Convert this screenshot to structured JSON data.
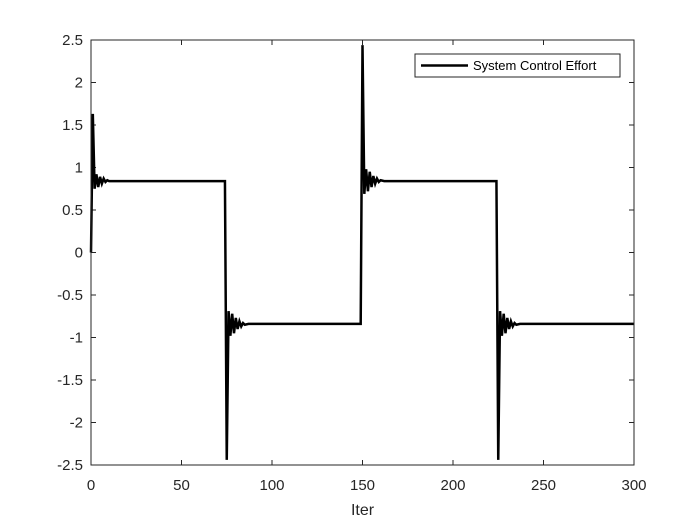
{
  "chart_data": {
    "type": "line",
    "title": "",
    "xlabel": "Iter",
    "ylabel": "",
    "xlim": [
      0,
      300
    ],
    "ylim": [
      -2.5,
      2.5
    ],
    "xticks": [
      0,
      50,
      100,
      150,
      200,
      250,
      300
    ],
    "xtick_labels": [
      "0",
      "50",
      "100",
      "150",
      "200",
      "250",
      "300"
    ],
    "yticks": [
      -2.5,
      -2,
      -1.5,
      -1,
      -0.5,
      0,
      0.5,
      1,
      1.5,
      2,
      2.5
    ],
    "ytick_labels": [
      "-2.5",
      "-2",
      "-1.5",
      "-1",
      "-0.5",
      "0",
      "0.5",
      "1",
      "1.5",
      "2",
      "2.5"
    ],
    "grid": false,
    "legend": {
      "placement": "top-right",
      "entries": [
        "System Control Effort"
      ]
    },
    "series": [
      {
        "name": "System Control Effort",
        "color": "#000000",
        "x": [
          0,
          1,
          2,
          3,
          4,
          5,
          6,
          7,
          8,
          9,
          10,
          12,
          74,
          75,
          76,
          77,
          78,
          79,
          80,
          81,
          82,
          83,
          84,
          85,
          87,
          149,
          150,
          151,
          152,
          153,
          154,
          155,
          156,
          157,
          158,
          159,
          160,
          162,
          224,
          225,
          226,
          227,
          228,
          229,
          230,
          231,
          232,
          233,
          234,
          235,
          237,
          300
        ],
        "y": [
          0,
          1.63,
          0.75,
          0.92,
          0.77,
          0.89,
          0.81,
          0.87,
          0.83,
          0.85,
          0.84,
          0.84,
          0.84,
          -2.44,
          -0.69,
          -0.98,
          -0.72,
          -0.95,
          -0.77,
          -0.9,
          -0.81,
          -0.87,
          -0.83,
          -0.85,
          -0.84,
          -0.84,
          2.44,
          0.69,
          0.98,
          0.72,
          0.95,
          0.77,
          0.9,
          0.81,
          0.87,
          0.83,
          0.85,
          0.84,
          0.84,
          -2.44,
          -0.69,
          -0.98,
          -0.72,
          -0.95,
          -0.77,
          -0.9,
          -0.81,
          -0.87,
          -0.83,
          -0.85,
          -0.84,
          -0.84
        ]
      }
    ]
  },
  "colors": {
    "axis": "#262626",
    "line": "#000000",
    "background": "#ffffff"
  }
}
